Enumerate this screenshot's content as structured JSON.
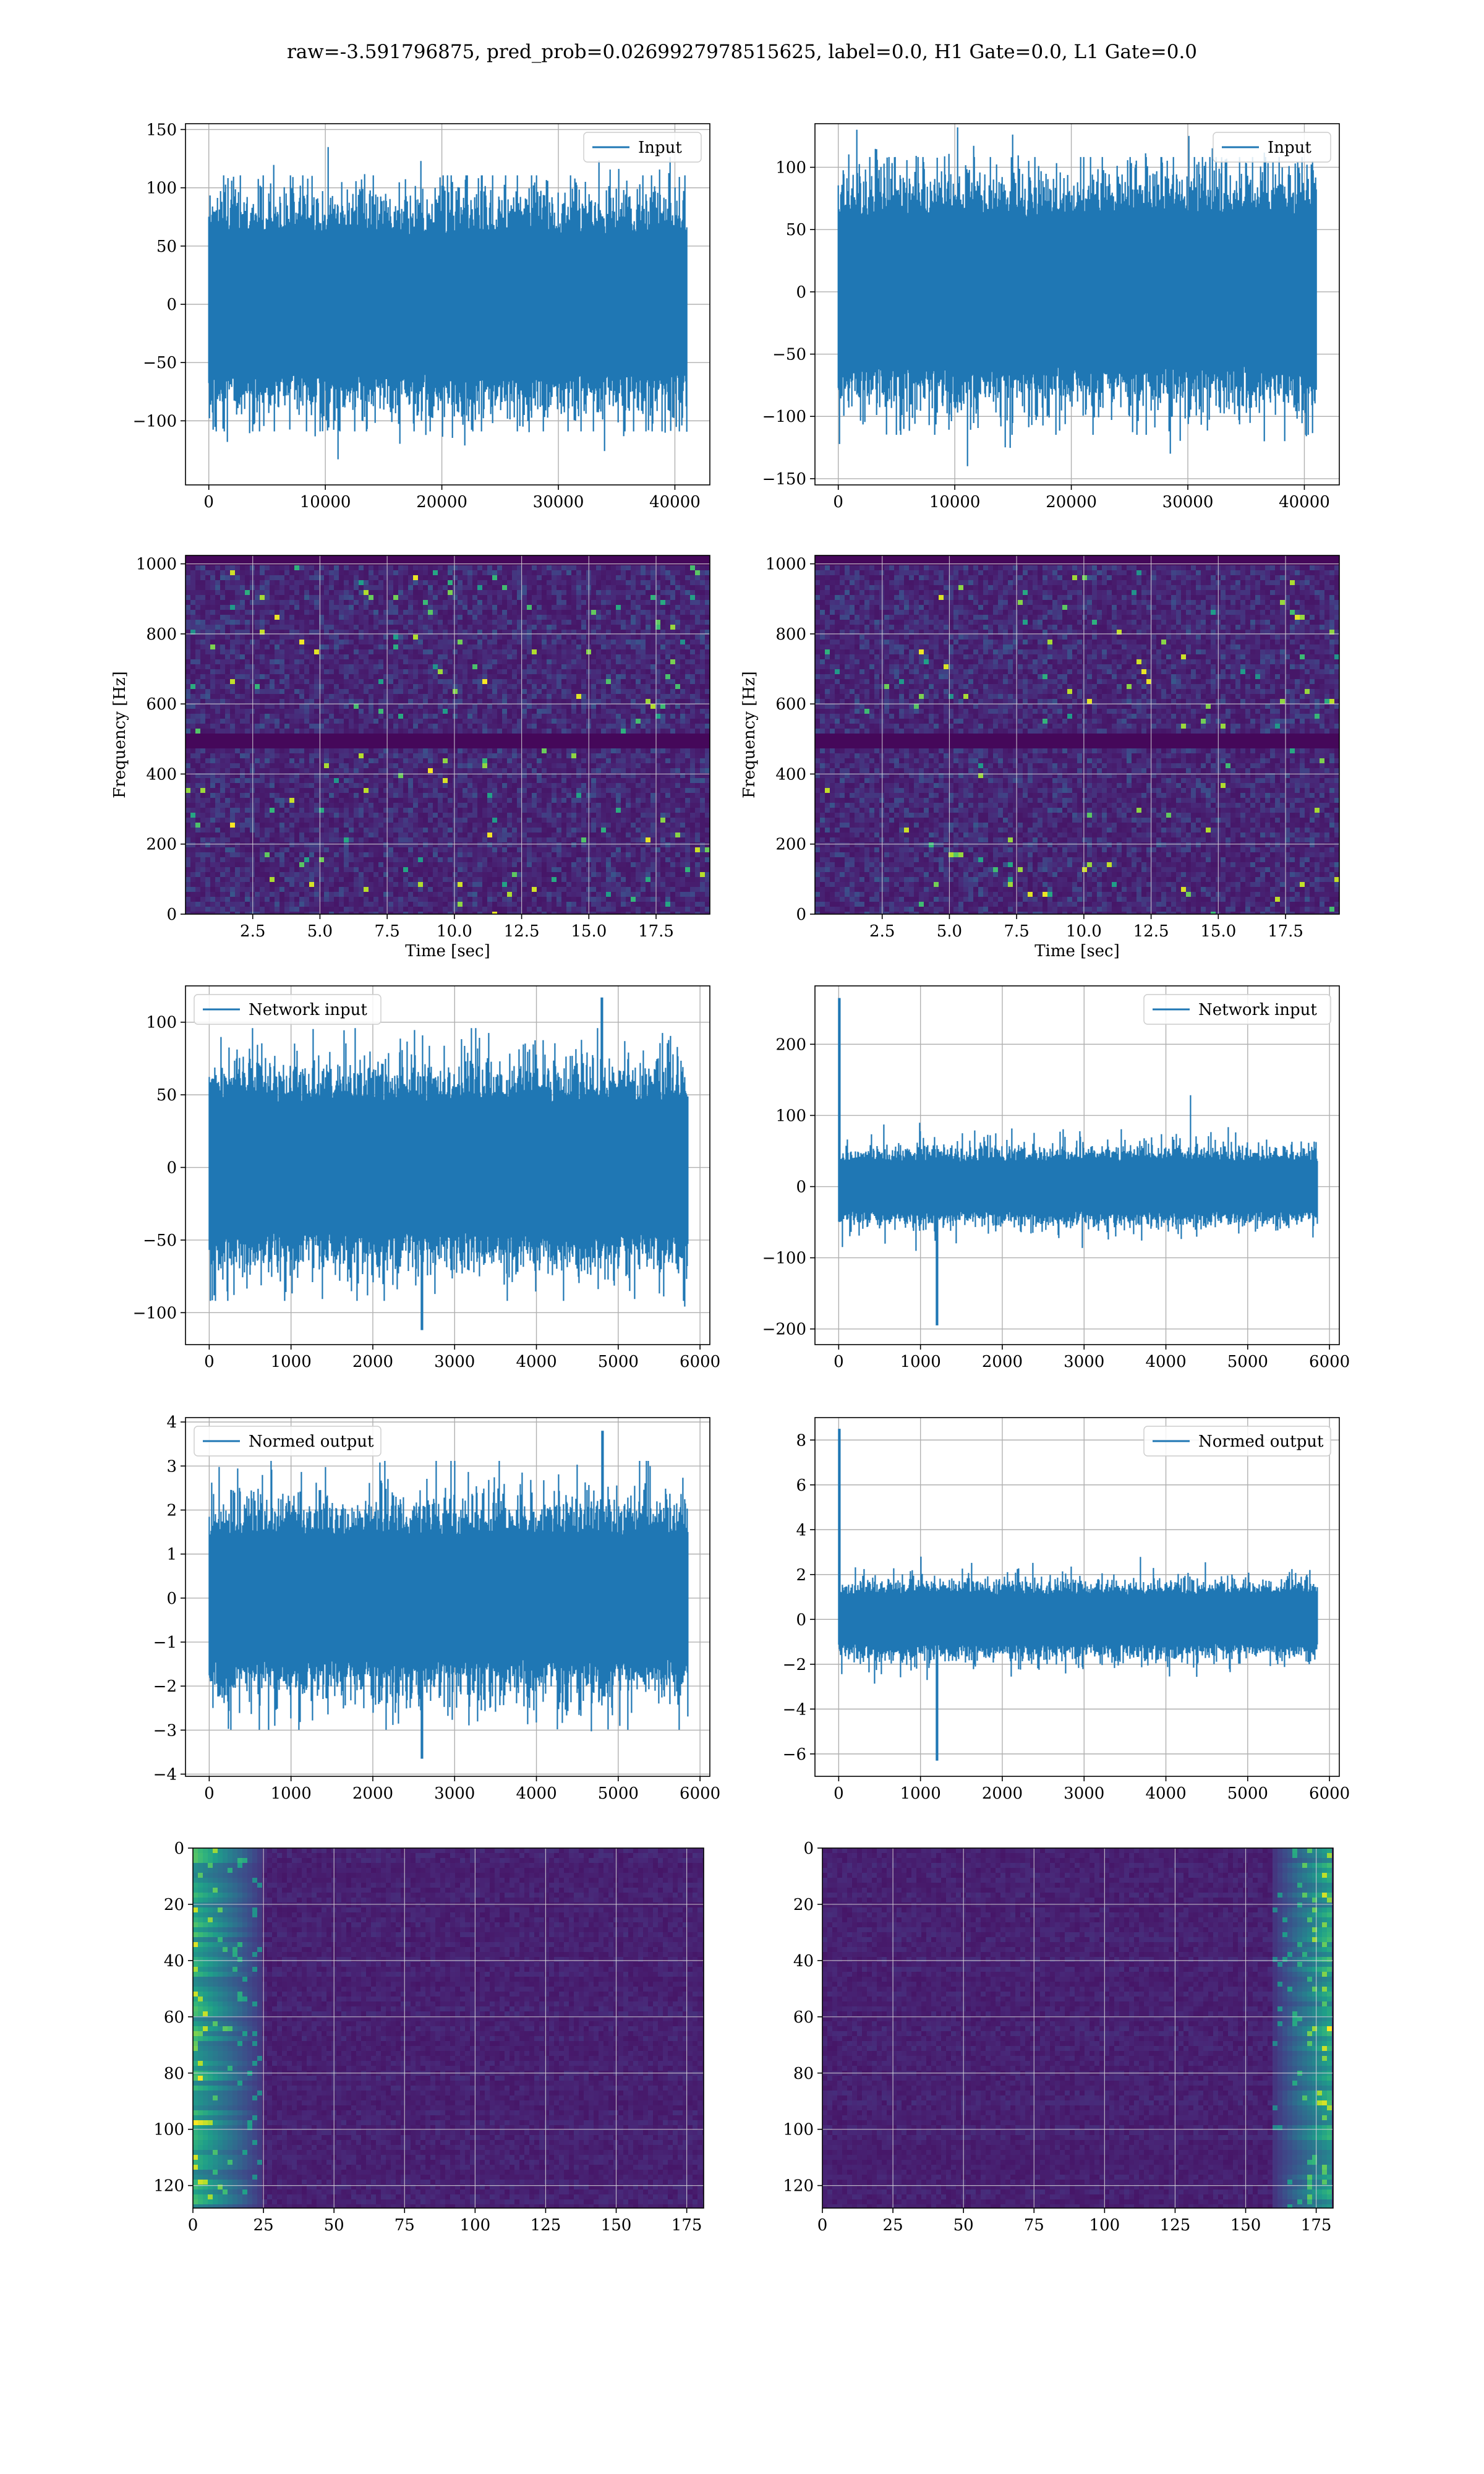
{
  "suptitle": "raw=-3.591796875, pred_prob=0.0269927978515625, label=0.0, H1 Gate=0.0, L1 Gate=0.0",
  "colors": {
    "line": "#1f77b4",
    "grid": "#b0b0b0",
    "viridis": [
      "#440154",
      "#482878",
      "#3e4989",
      "#31688e",
      "#26828e",
      "#1f9e89",
      "#35b779",
      "#6ece58",
      "#b5de2b",
      "#fde725"
    ]
  },
  "chart_data": [
    {
      "id": "p1",
      "type": "line",
      "legend": "Input",
      "legend_loc": "upper right",
      "xlim": [
        -2000,
        43000
      ],
      "ylim": [
        -155,
        155
      ],
      "xticks": [
        0,
        10000,
        20000,
        30000,
        40000
      ],
      "yticks": [
        -100,
        -50,
        0,
        50,
        100,
        150
      ],
      "series": [
        {
          "name": "Input",
          "x_range": [
            0,
            41000
          ],
          "n": 41000,
          "band": [
            -60,
            60
          ],
          "max": 135,
          "min": -133
        }
      ],
      "grid": true
    },
    {
      "id": "p2",
      "type": "line",
      "legend": "Input",
      "legend_loc": "upper right",
      "xlim": [
        -2000,
        43000
      ],
      "ylim": [
        -155,
        135
      ],
      "xticks": [
        0,
        10000,
        20000,
        30000,
        40000
      ],
      "yticks": [
        -150,
        -100,
        -50,
        0,
        50,
        100
      ],
      "series": [
        {
          "name": "Input",
          "x_range": [
            0,
            41000
          ],
          "n": 41000,
          "band": [
            -60,
            60
          ],
          "max": 132,
          "min": -140
        }
      ],
      "grid": true
    },
    {
      "id": "p3",
      "type": "heatmap",
      "xlim": [
        0,
        19.5
      ],
      "ylim": [
        0,
        1024
      ],
      "xlabel": "Time [sec]",
      "ylabel": "Frequency [Hz]",
      "xticks": [
        2.5,
        5.0,
        7.5,
        10.0,
        12.5,
        15.0,
        17.5
      ],
      "yticks": [
        0,
        200,
        400,
        600,
        800,
        1000
      ],
      "features": {
        "dark_band_hz": [
          480,
          520
        ],
        "dark_top_hz": [
          1000,
          1024
        ]
      },
      "grid": true
    },
    {
      "id": "p4",
      "type": "heatmap",
      "xlim": [
        0,
        19.5
      ],
      "ylim": [
        0,
        1024
      ],
      "xlabel": "Time [sec]",
      "ylabel": "Frequency [Hz]",
      "xticks": [
        2.5,
        5.0,
        7.5,
        10.0,
        12.5,
        15.0,
        17.5
      ],
      "yticks": [
        0,
        200,
        400,
        600,
        800,
        1000
      ],
      "features": {
        "dark_band_hz": [
          480,
          520
        ],
        "dark_top_hz": [
          1000,
          1024
        ]
      },
      "grid": true
    },
    {
      "id": "p5",
      "type": "line",
      "legend": "Network input",
      "legend_loc": "upper left",
      "xlim": [
        -290,
        6120
      ],
      "ylim": [
        -122,
        125
      ],
      "xticks": [
        0,
        1000,
        2000,
        3000,
        4000,
        5000,
        6000
      ],
      "yticks": [
        -100,
        -50,
        0,
        50,
        100
      ],
      "series": [
        {
          "name": "Network input",
          "x_range": [
            0,
            5850
          ],
          "n": 5850,
          "band": [
            -45,
            45
          ],
          "max": 117,
          "min": -112,
          "max_at": 4800,
          "min_at": 2600
        }
      ],
      "grid": true
    },
    {
      "id": "p6",
      "type": "line",
      "legend": "Network input",
      "legend_loc": "upper right",
      "xlim": [
        -290,
        6120
      ],
      "ylim": [
        -222,
        282
      ],
      "xticks": [
        0,
        1000,
        2000,
        3000,
        4000,
        5000,
        6000
      ],
      "yticks": [
        -200,
        -100,
        0,
        100,
        200
      ],
      "series": [
        {
          "name": "Network input",
          "x_range": [
            0,
            5850
          ],
          "n": 5850,
          "band": [
            -35,
            35
          ],
          "max": 265,
          "min": -195,
          "max_at": 5,
          "min_at": 1200
        }
      ],
      "grid": true
    },
    {
      "id": "p7",
      "type": "line",
      "legend": "Normed output",
      "legend_loc": "upper left",
      "xlim": [
        -290,
        6120
      ],
      "ylim": [
        -4.05,
        4.1
      ],
      "xticks": [
        0,
        1000,
        2000,
        3000,
        4000,
        5000,
        6000
      ],
      "yticks": [
        -4,
        -3,
        -2,
        -1,
        0,
        1,
        2,
        3,
        4
      ],
      "series": [
        {
          "name": "Normed output",
          "x_range": [
            0,
            5850
          ],
          "n": 5850,
          "band": [
            -1.4,
            1.4
          ],
          "max": 3.8,
          "min": -3.65,
          "max_at": 4810,
          "min_at": 2600
        }
      ],
      "grid": true
    },
    {
      "id": "p8",
      "type": "line",
      "legend": "Normed output",
      "legend_loc": "upper right",
      "xlim": [
        -290,
        6120
      ],
      "ylim": [
        -7,
        9
      ],
      "xticks": [
        0,
        1000,
        2000,
        3000,
        4000,
        5000,
        6000
      ],
      "yticks": [
        -6,
        -4,
        -2,
        0,
        2,
        4,
        6,
        8
      ],
      "series": [
        {
          "name": "Normed output",
          "x_range": [
            0,
            5850
          ],
          "n": 5850,
          "band": [
            -1.1,
            1.1
          ],
          "max": 8.5,
          "min": -6.3,
          "max_at": 5,
          "min_at": 1200
        }
      ],
      "grid": true
    },
    {
      "id": "p9",
      "type": "heatmap",
      "xlim": [
        0,
        181
      ],
      "ylim": [
        128,
        0
      ],
      "xticks": [
        0,
        25,
        50,
        75,
        100,
        125,
        150,
        175
      ],
      "yticks": [
        0,
        20,
        40,
        60,
        80,
        100,
        120
      ],
      "features": {
        "bright_cols": [
          0,
          25
        ]
      },
      "grid": true
    },
    {
      "id": "p10",
      "type": "heatmap",
      "xlim": [
        0,
        181
      ],
      "ylim": [
        128,
        0
      ],
      "xticks": [
        0,
        25,
        50,
        75,
        100,
        125,
        150,
        175
      ],
      "yticks": [
        0,
        20,
        40,
        60,
        80,
        100,
        120
      ],
      "features": {
        "bright_cols": [
          160,
          181
        ]
      },
      "grid": true
    }
  ]
}
